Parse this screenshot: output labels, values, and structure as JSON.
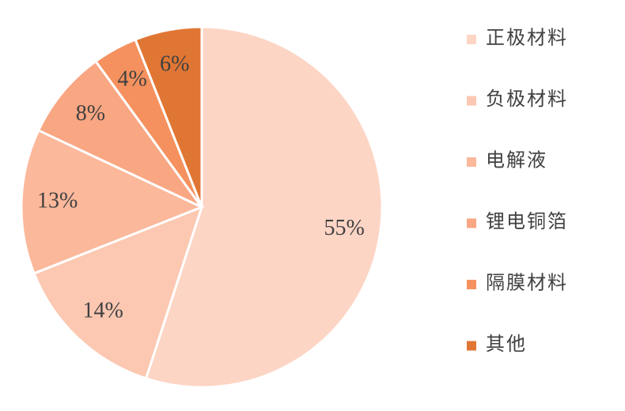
{
  "chart_data": {
    "type": "pie",
    "categories": [
      "正极材料",
      "负极材料",
      "电解液",
      "锂电铜箔",
      "隔膜材料",
      "其他"
    ],
    "values": [
      55,
      14,
      13,
      8,
      4,
      6
    ],
    "value_labels": [
      "55%",
      "14%",
      "13%",
      "8%",
      "4%",
      "6%"
    ],
    "colors": [
      "#fdd5c5",
      "#fcc8b2",
      "#fbb89b",
      "#f9a683",
      "#f4915e",
      "#e07634"
    ]
  }
}
